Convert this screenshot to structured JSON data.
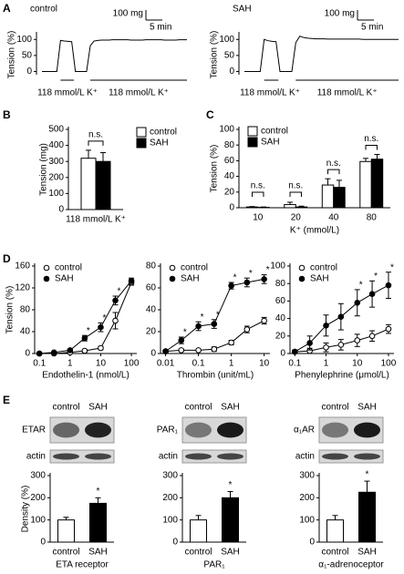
{
  "panels": [
    "A",
    "B",
    "C",
    "D",
    "E"
  ],
  "chart_data": [
    {
      "type": "trace",
      "title": "control",
      "ylabel": "Tension (%)",
      "ylim": [
        -10,
        115
      ],
      "yticks": [
        0,
        50,
        100
      ],
      "scale_bar": {
        "y_label": "100 mg",
        "x_label": "5 min"
      },
      "stimuli": [
        "118 mmol/L K⁺",
        "118 mmol/L K⁺"
      ],
      "values": [
        0,
        0,
        0,
        0,
        0,
        97,
        95,
        94,
        93,
        0,
        0,
        0,
        0,
        80,
        95,
        97,
        98,
        98,
        98,
        99,
        99,
        99,
        99,
        99,
        98,
        98,
        98,
        98,
        99,
        99,
        99,
        99,
        99,
        98,
        98,
        98,
        98,
        99,
        99,
        99
      ]
    },
    {
      "type": "trace",
      "title": "SAH",
      "ylabel": "Tension (%)",
      "ylim": [
        -10,
        115
      ],
      "yticks": [
        0,
        50,
        100
      ],
      "scale_bar": {
        "y_label": "100 mg",
        "x_label": "5 min"
      },
      "stimuli": [
        "118 mmol/L K⁺",
        "118 mmol/L K⁺"
      ],
      "values": [
        0,
        0,
        0,
        0,
        0,
        100,
        96,
        94,
        93,
        0,
        0,
        0,
        0,
        90,
        110,
        106,
        104,
        103,
        102,
        102,
        102,
        101,
        101,
        101,
        101,
        101,
        101,
        101,
        101,
        101,
        100,
        100,
        100,
        100,
        100,
        100,
        100,
        100,
        100,
        100
      ]
    },
    {
      "type": "bar",
      "ylabel": "Tension (mg)",
      "categories": [
        "118 mmol/L K⁺"
      ],
      "ylim": [
        0,
        500
      ],
      "yticks": [
        0,
        100,
        200,
        300,
        400,
        500
      ],
      "series": [
        {
          "name": "control",
          "color": "#ffffff",
          "values": [
            320
          ],
          "errors": [
            50
          ]
        },
        {
          "name": "SAH",
          "color": "#000000",
          "values": [
            300
          ],
          "errors": [
            55
          ]
        }
      ],
      "annotations": [
        "n.s."
      ],
      "legend": "right"
    },
    {
      "type": "bar",
      "ylabel": "Tension (%)",
      "xlabel": "K⁺ (mmol/L)",
      "categories": [
        "10",
        "20",
        "40",
        "80"
      ],
      "ylim": [
        0,
        100
      ],
      "yticks": [
        0,
        20,
        40,
        60,
        80,
        100
      ],
      "series": [
        {
          "name": "control",
          "color": "#ffffff",
          "values": [
            1,
            4,
            29,
            59
          ],
          "errors": [
            0.5,
            3,
            8,
            4
          ]
        },
        {
          "name": "SAH",
          "color": "#000000",
          "values": [
            0.5,
            1,
            26,
            62
          ],
          "errors": [
            0.5,
            1,
            9,
            6
          ]
        }
      ],
      "annotations": [
        "n.s.",
        "n.s.",
        "n.s.",
        "n.s."
      ],
      "legend": "top-left"
    },
    {
      "type": "line",
      "ylabel": "Tension (%)",
      "xlabel": "Endothelin-1 (nmol/L)",
      "log_x": true,
      "xlim": [
        0.07,
        150
      ],
      "xticks": [
        0.1,
        1,
        10,
        100
      ],
      "ylim": [
        0,
        160
      ],
      "yticks": [
        0,
        40,
        80,
        120,
        160
      ],
      "legend": "top-left",
      "x": [
        0.1,
        0.3,
        1,
        3,
        10,
        30,
        100
      ],
      "series": [
        {
          "name": "control",
          "color": "#ffffff",
          "values": [
            0,
            0,
            2,
            5,
            10,
            60,
            130
          ],
          "errors": [
            0,
            0,
            1,
            2,
            3,
            15,
            5
          ]
        },
        {
          "name": "SAH",
          "color": "#000000",
          "values": [
            0,
            2,
            6,
            28,
            48,
            97,
            133
          ],
          "errors": [
            0,
            1,
            2,
            5,
            8,
            8,
            5
          ],
          "significance": [
            null,
            null,
            null,
            "*",
            "*",
            "*",
            null
          ]
        }
      ]
    },
    {
      "type": "line",
      "xlabel": "Thrombin (unit/mL)",
      "log_x": true,
      "xlim": [
        0.007,
        15
      ],
      "xticks": [
        0.01,
        0.1,
        1,
        10
      ],
      "ylim": [
        0,
        80
      ],
      "yticks": [
        0,
        20,
        40,
        60,
        80
      ],
      "legend": "top-left",
      "x": [
        0.01,
        0.03,
        0.1,
        0.3,
        1,
        3,
        10
      ],
      "series": [
        {
          "name": "control",
          "color": "#ffffff",
          "values": [
            2,
            3,
            3,
            4,
            10,
            22,
            30
          ],
          "errors": [
            1,
            1,
            1,
            2,
            2,
            3,
            3
          ]
        },
        {
          "name": "SAH",
          "color": "#000000",
          "values": [
            2,
            12,
            25,
            27,
            62,
            65,
            68
          ],
          "errors": [
            1,
            3,
            4,
            4,
            3,
            4,
            4
          ],
          "significance": [
            null,
            "*",
            "*",
            "*",
            "*",
            "*",
            "*"
          ]
        }
      ]
    },
    {
      "type": "line",
      "xlabel": "Phenylephrine (μmol/L)",
      "log_x": true,
      "xlim": [
        0.07,
        150
      ],
      "xticks": [
        0.1,
        1,
        10,
        100
      ],
      "ylim": [
        0,
        100
      ],
      "yticks": [
        0,
        20,
        40,
        60,
        80,
        100
      ],
      "legend": "top-left",
      "x": [
        0.1,
        0.3,
        1,
        3,
        10,
        30,
        100
      ],
      "series": [
        {
          "name": "control",
          "color": "#ffffff",
          "values": [
            2,
            3,
            7,
            10,
            15,
            20,
            28
          ],
          "errors": [
            1,
            3,
            5,
            6,
            7,
            6,
            5
          ]
        },
        {
          "name": "SAH",
          "color": "#000000",
          "values": [
            2,
            12,
            32,
            42,
            58,
            68,
            78
          ],
          "errors": [
            2,
            8,
            12,
            15,
            15,
            15,
            15
          ],
          "significance": [
            null,
            null,
            null,
            null,
            "*",
            "*",
            "*"
          ]
        }
      ]
    },
    {
      "type": "blot",
      "columns": [
        "control",
        "SAH"
      ],
      "rows": [
        "ETAR",
        "actin"
      ]
    },
    {
      "type": "blot",
      "columns": [
        "control",
        "SAH"
      ],
      "rows": [
        "PAR₁",
        "actin"
      ]
    },
    {
      "type": "blot",
      "columns": [
        "control",
        "SAH"
      ],
      "rows": [
        "α₁AR",
        "actin"
      ]
    },
    {
      "type": "bar",
      "ylabel": "Density (%)",
      "xlabel": "ETA receptor",
      "categories": [
        "control",
        "SAH"
      ],
      "values": [
        100,
        175
      ],
      "errors": [
        12,
        25
      ],
      "colors": [
        "#ffffff",
        "#000000"
      ],
      "significance": [
        null,
        "*"
      ],
      "ylim": [
        0,
        300
      ],
      "yticks": [
        0,
        100,
        200,
        300
      ]
    },
    {
      "type": "bar",
      "xlabel": "PAR₁",
      "categories": [
        "control",
        "SAH"
      ],
      "values": [
        100,
        200
      ],
      "errors": [
        20,
        28
      ],
      "colors": [
        "#ffffff",
        "#000000"
      ],
      "significance": [
        null,
        "*"
      ],
      "ylim": [
        0,
        300
      ],
      "yticks": [
        0,
        100,
        200,
        300
      ]
    },
    {
      "type": "bar",
      "xlabel": "α₁-adrenoceptor",
      "categories": [
        "control",
        "SAH"
      ],
      "values": [
        100,
        225
      ],
      "errors": [
        20,
        50
      ],
      "colors": [
        "#ffffff",
        "#000000"
      ],
      "significance": [
        null,
        "*"
      ],
      "ylim": [
        0,
        300
      ],
      "yticks": [
        0,
        100,
        200,
        300
      ]
    }
  ]
}
